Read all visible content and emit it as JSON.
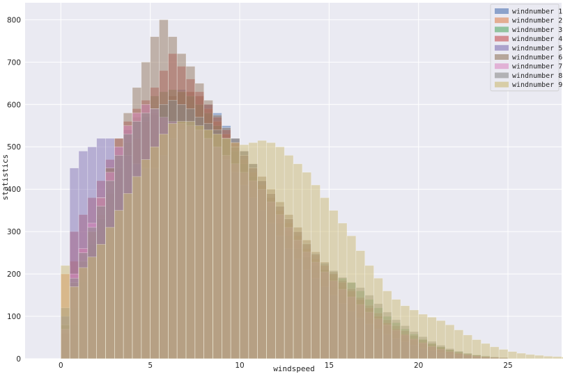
{
  "chart_data": {
    "type": "bar",
    "subtype": "overlaid-histogram",
    "title": "",
    "xlabel": "windspeed",
    "ylabel": "statistics",
    "xlim": [
      -2,
      28
    ],
    "ylim": [
      0,
      840
    ],
    "grid": true,
    "legend_position": "top-right",
    "xticks": [
      0,
      5,
      10,
      15,
      20,
      25
    ],
    "yticks": [
      0,
      100,
      200,
      300,
      400,
      500,
      600,
      700,
      800
    ],
    "background": "#eaeaf2",
    "bar_opacity": 0.5,
    "series": [
      {
        "name": "windnumber 1",
        "color": "#4c72b0",
        "binwidth": 0.5,
        "x_start": 0,
        "values": [
          40,
          80,
          180,
          280,
          330,
          400,
          470,
          540,
          560,
          570,
          575,
          600,
          620,
          635,
          630,
          620,
          600,
          580,
          550,
          520,
          490,
          460,
          420,
          380,
          330,
          300,
          270,
          240,
          210,
          190,
          170,
          150,
          130,
          110,
          95,
          80,
          70,
          60,
          50,
          42,
          36,
          30,
          25,
          20,
          16,
          12,
          9,
          7,
          5,
          3
        ]
      },
      {
        "name": "windnumber 2",
        "color": "#dd8452",
        "binwidth": 0.5,
        "x_start": 0,
        "values": [
          200,
          230,
          260,
          300,
          340,
          390,
          440,
          480,
          520,
          560,
          580,
          600,
          620,
          630,
          630,
          620,
          590,
          560,
          530,
          500,
          470,
          440,
          410,
          380,
          350,
          320,
          290,
          260,
          235,
          210,
          190,
          170,
          150,
          130,
          110,
          95,
          80,
          68,
          58,
          48,
          40,
          32,
          26,
          20,
          15,
          11,
          8,
          6,
          4,
          3
        ]
      },
      {
        "name": "windnumber 3",
        "color": "#55a868",
        "binwidth": 0.5,
        "x_start": 0,
        "values": [
          60,
          120,
          200,
          270,
          330,
          390,
          450,
          510,
          570,
          600,
          620,
          630,
          635,
          630,
          620,
          600,
          580,
          550,
          520,
          490,
          460,
          430,
          400,
          360,
          320,
          290,
          260,
          240,
          220,
          210,
          200,
          190,
          180,
          160,
          140,
          120,
          100,
          85,
          70,
          58,
          46,
          36,
          28,
          21,
          16,
          12,
          9,
          6,
          4,
          3
        ]
      },
      {
        "name": "windnumber 4",
        "color": "#c44e52",
        "binwidth": 0.5,
        "x_start": 0,
        "values": [
          60,
          300,
          340,
          380,
          420,
          470,
          520,
          560,
          590,
          610,
          640,
          680,
          720,
          690,
          660,
          630,
          600,
          570,
          540,
          510,
          480,
          450,
          420,
          390,
          360,
          330,
          300,
          270,
          245,
          220,
          200,
          180,
          160,
          140,
          120,
          100,
          84,
          70,
          58,
          47,
          38,
          30,
          23,
          17,
          12,
          9,
          6,
          4,
          3,
          2
        ]
      },
      {
        "name": "windnumber 5",
        "color": "#8172b3",
        "binwidth": 0.5,
        "x_start": 0,
        "values": [
          100,
          450,
          490,
          500,
          520,
          520,
          500,
          480,
          460,
          450,
          450,
          480,
          520,
          540,
          560,
          540,
          520,
          500,
          470,
          440,
          410,
          380,
          350,
          320,
          290,
          260,
          235,
          210,
          190,
          170,
          150,
          130,
          112,
          96,
          82,
          70,
          58,
          48,
          40,
          32,
          25,
          19,
          14,
          10,
          7,
          5,
          3,
          2,
          1,
          1
        ]
      },
      {
        "name": "windnumber 6",
        "color": "#937860",
        "binwidth": 0.5,
        "x_start": 0,
        "values": [
          80,
          180,
          230,
          300,
          380,
          450,
          520,
          580,
          640,
          700,
          760,
          800,
          760,
          720,
          690,
          650,
          610,
          575,
          545,
          520,
          490,
          460,
          430,
          400,
          370,
          340,
          310,
          280,
          252,
          228,
          205,
          185,
          165,
          145,
          126,
          108,
          92,
          78,
          66,
          55,
          45,
          36,
          28,
          21,
          15,
          11,
          8,
          6,
          4,
          3
        ]
      },
      {
        "name": "windnumber 7",
        "color": "#da8bc3",
        "binwidth": 0.5,
        "x_start": 0,
        "values": [
          70,
          200,
          260,
          320,
          380,
          440,
          500,
          550,
          580,
          600,
          590,
          570,
          560,
          555,
          550,
          540,
          520,
          500,
          480,
          460,
          440,
          420,
          400,
          370,
          340,
          310,
          280,
          252,
          228,
          205,
          184,
          164,
          146,
          128,
          110,
          94,
          80,
          67,
          56,
          46,
          37,
          29,
          22,
          17,
          12,
          9,
          6,
          4,
          3,
          2
        ]
      },
      {
        "name": "windnumber 8",
        "color": "#8c8c8c",
        "binwidth": 0.5,
        "x_start": 0,
        "values": [
          120,
          190,
          250,
          310,
          360,
          420,
          480,
          530,
          560,
          580,
          590,
          600,
          610,
          600,
          590,
          570,
          555,
          540,
          520,
          500,
          480,
          450,
          420,
          390,
          360,
          330,
          300,
          272,
          248,
          226,
          208,
          192,
          180,
          168,
          150,
          130,
          110,
          92,
          78,
          64,
          52,
          41,
          32,
          24,
          18,
          13,
          9,
          6,
          4,
          3
        ]
      },
      {
        "name": "windnumber 9",
        "color": "#ccb974",
        "binwidth": 0.5,
        "x_start": 0,
        "values": [
          220,
          170,
          215,
          240,
          270,
          310,
          350,
          390,
          430,
          470,
          500,
          530,
          555,
          560,
          560,
          550,
          540,
          530,
          520,
          510,
          505,
          510,
          515,
          510,
          500,
          480,
          460,
          440,
          410,
          380,
          350,
          320,
          290,
          255,
          220,
          190,
          160,
          140,
          125,
          115,
          105,
          98,
          90,
          80,
          68,
          56,
          45,
          36,
          28,
          22,
          17,
          13,
          10,
          8,
          6,
          5,
          4,
          3,
          2,
          2,
          1,
          1,
          1,
          1,
          1,
          1,
          1,
          1,
          1,
          1,
          1,
          1,
          1,
          1,
          1,
          1,
          1,
          1,
          1,
          1,
          1,
          1,
          1,
          1,
          1,
          1,
          1,
          1,
          1,
          1,
          1,
          1,
          1,
          1,
          1,
          1,
          1,
          1,
          1,
          1,
          1,
          1,
          1,
          1
        ]
      }
    ]
  }
}
